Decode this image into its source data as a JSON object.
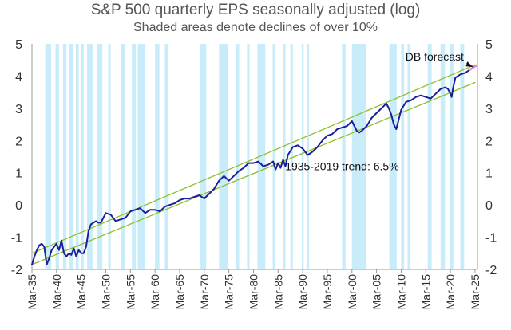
{
  "chart_data": {
    "type": "line",
    "title": "S&P 500 quarterly EPS seasonally adjusted (log)",
    "subtitle": "Shaded areas denote declines of over 10%",
    "xlabel": "",
    "ylabel": "",
    "xlim": [
      1935,
      2025.5
    ],
    "ylim": [
      -2,
      5
    ],
    "yticks": [
      -2,
      -1,
      0,
      1,
      2,
      3,
      4,
      5
    ],
    "xticks": [
      {
        "year": 1935,
        "label": "Mar-35"
      },
      {
        "year": 1940,
        "label": "Mar-40"
      },
      {
        "year": 1945,
        "label": "Mar-45"
      },
      {
        "year": 1950,
        "label": "Mar-50"
      },
      {
        "year": 1955,
        "label": "Mar-55"
      },
      {
        "year": 1960,
        "label": "Mar-60"
      },
      {
        "year": 1965,
        "label": "Mar-65"
      },
      {
        "year": 1970,
        "label": "Mar-70"
      },
      {
        "year": 1975,
        "label": "Mar-75"
      },
      {
        "year": 1980,
        "label": "Mar-80"
      },
      {
        "year": 1985,
        "label": "Mar-85"
      },
      {
        "year": 1990,
        "label": "Mar-90"
      },
      {
        "year": 1995,
        "label": "Mar-95"
      },
      {
        "year": 2000,
        "label": "Mar-00"
      },
      {
        "year": 2005,
        "label": "Mar-05"
      },
      {
        "year": 2010,
        "label": "Mar-10"
      },
      {
        "year": 2015,
        "label": "Mar-15"
      },
      {
        "year": 2020,
        "label": "Mar-20"
      },
      {
        "year": 2025,
        "label": "Mar-25"
      }
    ],
    "shaded_periods": [
      [
        1937.7,
        1938.9
      ],
      [
        1939.8,
        1940.5
      ],
      [
        1941.3,
        1942.0
      ],
      [
        1942.6,
        1943.3
      ],
      [
        1943.9,
        1944.5
      ],
      [
        1945.0,
        1945.5
      ],
      [
        1946.2,
        1947.3
      ],
      [
        1948.3,
        1949.3
      ],
      [
        1950.5,
        1951.0
      ],
      [
        1953.1,
        1953.9
      ],
      [
        1955.3,
        1956.1
      ],
      [
        1956.5,
        1957.9
      ],
      [
        1960.0,
        1960.9
      ],
      [
        1962.0,
        1962.7
      ],
      [
        1969.1,
        1970.4
      ],
      [
        1973.0,
        1974.9
      ],
      [
        1976.5,
        1977.1
      ],
      [
        1978.7,
        1979.2
      ],
      [
        1980.8,
        1982.4
      ],
      [
        1983.9,
        1984.5
      ],
      [
        1986.0,
        1986.5
      ],
      [
        1987.5,
        1988.0
      ],
      [
        1989.8,
        1990.2
      ],
      [
        1990.9,
        1991.3
      ],
      [
        1998.0,
        1998.7
      ],
      [
        2000.0,
        2002.8
      ],
      [
        2007.6,
        2009.1
      ],
      [
        2010.0,
        2010.6
      ],
      [
        2011.3,
        2011.9
      ],
      [
        2015.4,
        2016.2
      ],
      [
        2018.0,
        2018.9
      ],
      [
        2019.9,
        2020.6
      ],
      [
        2022.0,
        2022.8
      ]
    ],
    "series": [
      {
        "name": "S&P 500 EPS (log)",
        "color": "#1b1f9c",
        "x": [
          1935.0,
          1935.5,
          1936.0,
          1936.5,
          1937.0,
          1937.5,
          1938.0,
          1938.5,
          1939.0,
          1939.5,
          1940.0,
          1940.5,
          1941.0,
          1941.5,
          1942.0,
          1942.5,
          1943.0,
          1943.5,
          1944.0,
          1944.5,
          1945.0,
          1945.5,
          1946.0,
          1946.5,
          1947.0,
          1947.5,
          1948.0,
          1948.5,
          1949.0,
          1949.5,
          1950.0,
          1951.0,
          1952.0,
          1953.0,
          1954.0,
          1955.0,
          1956.0,
          1957.0,
          1958.0,
          1959.0,
          1960.0,
          1961.0,
          1962.0,
          1963.0,
          1964.0,
          1965.0,
          1966.0,
          1967.0,
          1968.0,
          1969.0,
          1970.0,
          1971.0,
          1972.0,
          1973.0,
          1974.0,
          1975.0,
          1976.0,
          1977.0,
          1978.0,
          1979.0,
          1980.0,
          1981.0,
          1982.0,
          1983.0,
          1984.0,
          1984.5,
          1985.0,
          1985.5,
          1986.0,
          1986.5,
          1987.0,
          1988.0,
          1989.0,
          1990.0,
          1991.0,
          1991.5,
          1992.0,
          1993.0,
          1994.0,
          1995.0,
          1996.0,
          1997.0,
          1998.0,
          1999.0,
          2000.0,
          2001.0,
          2001.5,
          2002.0,
          2003.0,
          2004.0,
          2005.0,
          2006.0,
          2007.0,
          2007.5,
          2008.0,
          2008.5,
          2009.0,
          2010.0,
          2011.0,
          2012.0,
          2013.0,
          2014.0,
          2015.0,
          2016.0,
          2017.0,
          2018.0,
          2019.0,
          2019.5,
          2020.0,
          2020.25,
          2020.5,
          2021.0,
          2022.0,
          2023.0,
          2024.0
        ],
        "values": [
          -1.85,
          -1.6,
          -1.4,
          -1.25,
          -1.2,
          -1.3,
          -1.85,
          -1.65,
          -1.4,
          -1.3,
          -1.2,
          -1.4,
          -1.1,
          -1.5,
          -1.6,
          -1.5,
          -1.55,
          -1.35,
          -1.6,
          -1.4,
          -1.5,
          -1.5,
          -1.3,
          -0.8,
          -0.6,
          -0.55,
          -0.5,
          -0.55,
          -0.55,
          -0.4,
          -0.25,
          -0.3,
          -0.5,
          -0.45,
          -0.4,
          -0.2,
          -0.15,
          -0.1,
          -0.25,
          -0.15,
          -0.15,
          -0.2,
          -0.05,
          0.0,
          0.05,
          0.15,
          0.2,
          0.2,
          0.25,
          0.3,
          0.2,
          0.35,
          0.5,
          0.75,
          0.9,
          0.75,
          0.9,
          1.05,
          1.15,
          1.3,
          1.3,
          1.35,
          1.2,
          1.25,
          1.35,
          1.1,
          1.3,
          1.15,
          1.4,
          1.2,
          1.55,
          1.8,
          1.85,
          1.75,
          1.55,
          1.6,
          1.65,
          1.8,
          2.0,
          2.15,
          2.2,
          2.35,
          2.4,
          2.45,
          2.6,
          2.3,
          2.25,
          2.3,
          2.45,
          2.7,
          2.85,
          3.0,
          3.15,
          3.0,
          2.8,
          2.5,
          2.35,
          2.95,
          3.2,
          3.25,
          3.35,
          3.4,
          3.35,
          3.3,
          3.45,
          3.6,
          3.65,
          3.6,
          3.45,
          3.35,
          3.6,
          3.95,
          4.05,
          4.1,
          4.2
        ]
      },
      {
        "name": "DB forecast",
        "color": "#e07de0",
        "x": [
          2024.0,
          2024.5,
          2025.0,
          2025.4
        ],
        "values": [
          4.2,
          4.25,
          4.3,
          4.33
        ]
      },
      {
        "name": "Upper trend band",
        "color": "#8cbf26",
        "x": [
          1935.0,
          2025.0
        ],
        "values": [
          -1.5,
          4.35
        ]
      },
      {
        "name": "Lower trend band",
        "color": "#8cbf26",
        "x": [
          1935.0,
          2025.0
        ],
        "values": [
          -1.85,
          3.8
        ]
      }
    ],
    "annotations": [
      {
        "text": "DB forecast",
        "x": 2016.8,
        "y": 4.6
      },
      {
        "text": "1935-2019 trend: 6.5%",
        "x": 1998.0,
        "y": 1.2
      }
    ]
  }
}
